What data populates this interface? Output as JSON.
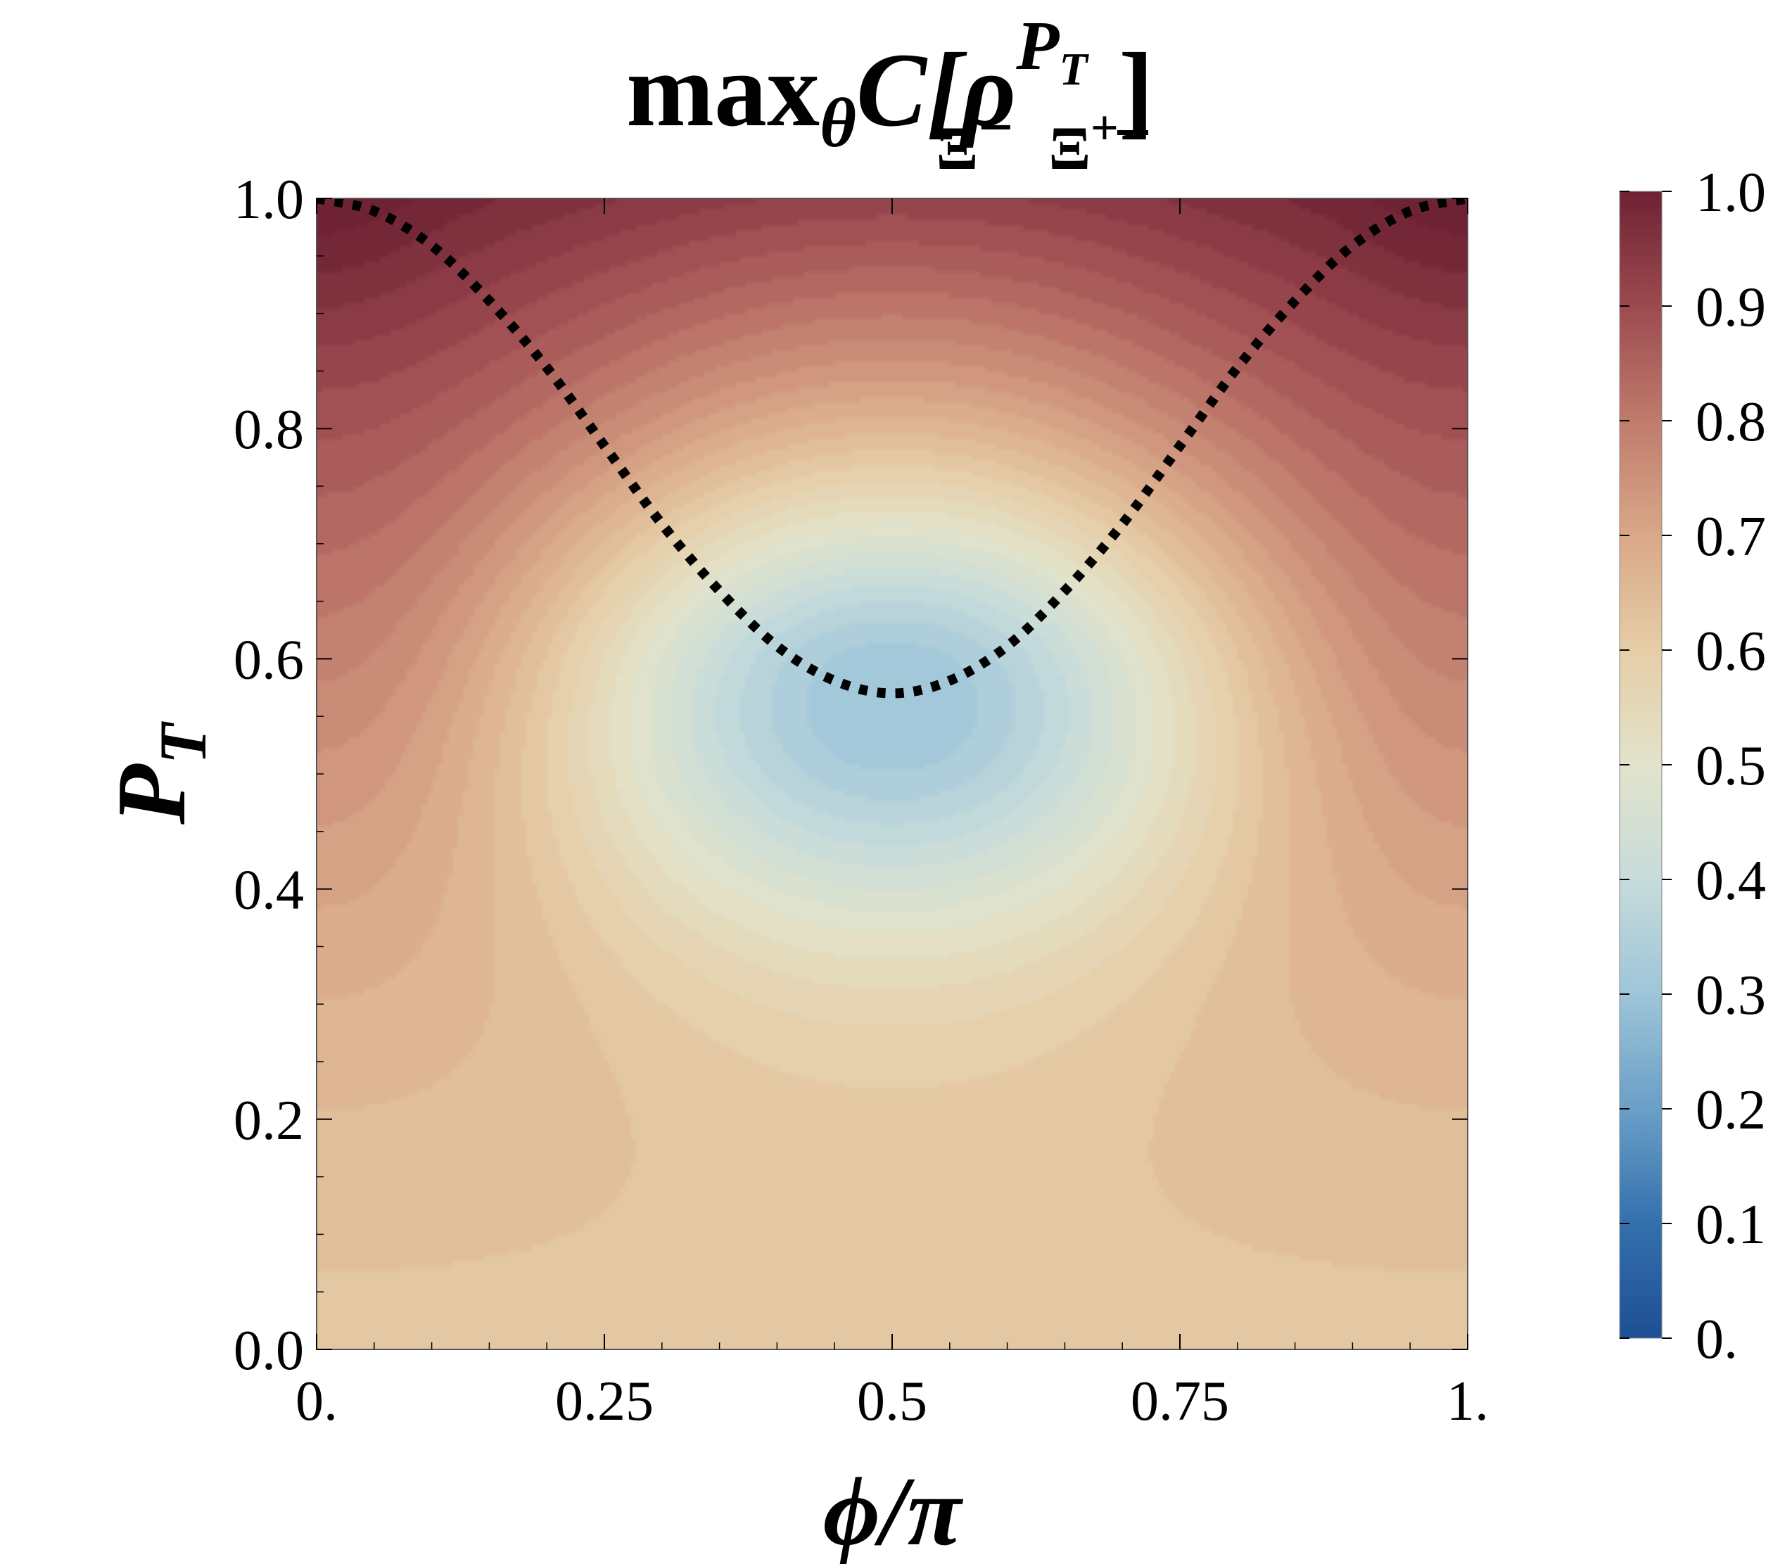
{
  "chart_data": {
    "type": "heatmap",
    "title": {
      "main": "max",
      "sub_theta": "θ",
      "func": "C[",
      "rho": "ρ",
      "sup_P": "P",
      "sup_T": "T",
      "sub_particles": "Ξ",
      "sub_minus": "−",
      "sub_plus": "+",
      "close": "]"
    },
    "xlabel": "ϕ/π",
    "ylabel": {
      "main": "P",
      "sub": "T"
    },
    "xlim": [
      0,
      1
    ],
    "ylim": [
      0,
      1
    ],
    "x_ticks": [
      {
        "value": 0,
        "label": "0."
      },
      {
        "value": 0.25,
        "label": "0.25"
      },
      {
        "value": 0.5,
        "label": "0.5"
      },
      {
        "value": 0.75,
        "label": "0.75"
      },
      {
        "value": 1,
        "label": "1."
      }
    ],
    "y_ticks": [
      {
        "value": 0,
        "label": "0.0"
      },
      {
        "value": 0.2,
        "label": "0.2"
      },
      {
        "value": 0.4,
        "label": "0.4"
      },
      {
        "value": 0.6,
        "label": "0.6"
      },
      {
        "value": 0.8,
        "label": "0.8"
      },
      {
        "value": 1.0,
        "label": "1.0"
      }
    ],
    "colorbar": {
      "range": [
        0,
        1
      ],
      "ticks": [
        {
          "value": 0,
          "label": "0."
        },
        {
          "value": 0.1,
          "label": "0.1"
        },
        {
          "value": 0.2,
          "label": "0.2"
        },
        {
          "value": 0.3,
          "label": "0.3"
        },
        {
          "value": 0.4,
          "label": "0.4"
        },
        {
          "value": 0.5,
          "label": "0.5"
        },
        {
          "value": 0.6,
          "label": "0.6"
        },
        {
          "value": 0.7,
          "label": "0.7"
        },
        {
          "value": 0.8,
          "label": "0.8"
        },
        {
          "value": 0.9,
          "label": "0.9"
        },
        {
          "value": 1.0,
          "label": "1.0"
        }
      ],
      "colormap_stops": [
        {
          "value": 0.0,
          "color": "#1f4f94"
        },
        {
          "value": 0.1,
          "color": "#3370ad"
        },
        {
          "value": 0.2,
          "color": "#6a9fc7"
        },
        {
          "value": 0.3,
          "color": "#9ec5d9"
        },
        {
          "value": 0.4,
          "color": "#c7dcdb"
        },
        {
          "value": 0.5,
          "color": "#e2e3ca"
        },
        {
          "value": 0.6,
          "color": "#e6cda7"
        },
        {
          "value": 0.7,
          "color": "#d9a888"
        },
        {
          "value": 0.8,
          "color": "#c07b6c"
        },
        {
          "value": 0.9,
          "color": "#9c4a4f"
        },
        {
          "value": 1.0,
          "color": "#6e2233"
        }
      ]
    },
    "field": {
      "description_values": [
        {
          "x": 0.0,
          "y": 0.0,
          "value": 0.62
        },
        {
          "x": 0.5,
          "y": 0.0,
          "value": 0.62
        },
        {
          "x": 0.0,
          "y": 0.5,
          "value": 0.73
        },
        {
          "x": 0.5,
          "y": 0.5,
          "value": 0.38
        },
        {
          "x": 0.5,
          "y": 0.57,
          "value": 0.3
        },
        {
          "x": 0.0,
          "y": 1.0,
          "value": 0.99
        },
        {
          "x": 0.5,
          "y": 1.0,
          "value": 0.95
        }
      ]
    },
    "series": [
      {
        "style": "dotted",
        "color": "#000000",
        "x": [
          0,
          0.05,
          0.1,
          0.15,
          0.2,
          0.25,
          0.3,
          0.35,
          0.4,
          0.45,
          0.5,
          0.55,
          0.6,
          0.65,
          0.7,
          0.75,
          0.8,
          0.85,
          0.9,
          0.95,
          1.0
        ],
        "y": [
          1.0,
          0.989,
          0.959,
          0.911,
          0.853,
          0.785,
          0.717,
          0.659,
          0.611,
          0.581,
          0.57,
          0.581,
          0.611,
          0.659,
          0.717,
          0.785,
          0.853,
          0.911,
          0.959,
          0.989,
          1.0
        ]
      }
    ]
  }
}
